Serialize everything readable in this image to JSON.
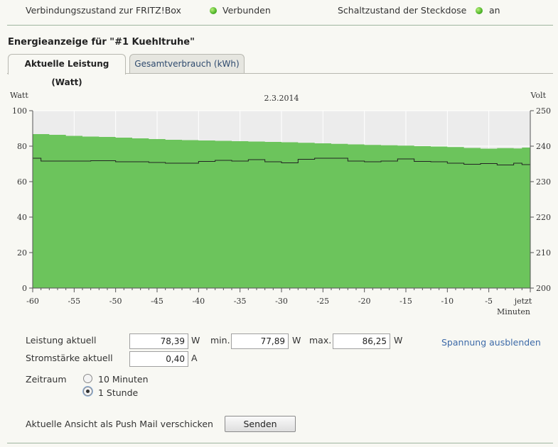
{
  "status": {
    "connection_label": "Verbindungszustand zur FRITZ!Box",
    "connection_value": "Verbunden",
    "switch_label": "Schaltzustand der Steckdose",
    "switch_value": "an",
    "led_color": "#4fb52a"
  },
  "section_title": "Energieanzeige für \"#1 Kuehltruhe\"",
  "tabs": [
    {
      "label": "Aktuelle Leistung (Watt)",
      "active": true
    },
    {
      "label": "Gesamtverbrauch (kWh)",
      "active": false
    }
  ],
  "chart_data": {
    "type": "area",
    "title": "2.3.2014",
    "ylabel_left": "Watt",
    "ylabel_right": "Volt",
    "xlabel": "Minuten",
    "ylim_left": [
      0,
      100
    ],
    "ylim_right": [
      200,
      250
    ],
    "yticks_left": [
      "0",
      "20",
      "40",
      "60",
      "80",
      "100"
    ],
    "yticks_right": [
      "200",
      "210",
      "220",
      "230",
      "240",
      "250"
    ],
    "xlim": [
      -60,
      0
    ],
    "xticks": [
      {
        "v": -60,
        "label": "-60"
      },
      {
        "v": -55,
        "label": "-55"
      },
      {
        "v": -50,
        "label": "-50"
      },
      {
        "v": -45,
        "label": "-45"
      },
      {
        "v": -40,
        "label": "-40"
      },
      {
        "v": -35,
        "label": "-35"
      },
      {
        "v": -30,
        "label": "-30"
      },
      {
        "v": -25,
        "label": "-25"
      },
      {
        "v": -20,
        "label": "-20"
      },
      {
        "v": -15,
        "label": "-15"
      },
      {
        "v": -10,
        "label": "-10"
      },
      {
        "v": -5,
        "label": "-5"
      },
      {
        "v": 0,
        "label": "jetzt"
      }
    ],
    "grid": true,
    "fill_color": "#6cc45c",
    "voltage_color": "#222222",
    "power_watt": {
      "x": [
        -60,
        -58,
        -56,
        -54,
        -52,
        -50,
        -48,
        -46,
        -44,
        -42,
        -40,
        -38,
        -36,
        -34,
        -32,
        -30,
        -28,
        -26,
        -24,
        -22,
        -20,
        -18,
        -16,
        -14,
        -12,
        -10,
        -8,
        -6,
        -4,
        -2,
        -1,
        0
      ],
      "y": [
        86.8,
        86.4,
        85.8,
        85.4,
        85.2,
        84.8,
        84.4,
        84.0,
        83.6,
        83.4,
        83.2,
        83.0,
        82.8,
        82.6,
        82.4,
        82.2,
        81.9,
        81.6,
        81.3,
        81.0,
        80.7,
        80.5,
        80.3,
        80.0,
        79.8,
        79.5,
        79.0,
        78.6,
        78.9,
        78.7,
        79.2,
        79.3
      ]
    },
    "voltage_volt": {
      "x": [
        -60,
        -59,
        -57,
        -55,
        -53,
        -50,
        -48,
        -46,
        -44,
        -42,
        -40,
        -38,
        -36,
        -34,
        -32,
        -30,
        -28,
        -26,
        -24,
        -22,
        -20,
        -18,
        -16,
        -14,
        -12,
        -10,
        -8,
        -6,
        -4,
        -2,
        -1,
        0
      ],
      "y": [
        236.6,
        235.8,
        235.8,
        235.8,
        235.9,
        235.6,
        235.6,
        235.4,
        235.2,
        235.2,
        235.7,
        236.0,
        235.8,
        236.2,
        235.6,
        235.3,
        236.3,
        236.6,
        236.6,
        235.8,
        235.6,
        235.8,
        236.4,
        235.7,
        235.6,
        235.2,
        234.9,
        235.1,
        234.7,
        235.2,
        234.8,
        234.9
      ]
    }
  },
  "readings": {
    "power_label": "Leistung aktuell",
    "power_value": "78,39",
    "power_unit": "W",
    "min_label": "min.",
    "min_value": "77,89",
    "min_unit": "W",
    "max_label": "max.",
    "max_value": "86,25",
    "max_unit": "W",
    "current_label": "Stromstärke aktuell",
    "current_value": "0,40",
    "current_unit": "A",
    "toggle_voltage_link": "Spannung ausblenden"
  },
  "period": {
    "label": "Zeitraum",
    "options": [
      {
        "label": "10 Minuten",
        "selected": false
      },
      {
        "label": "1 Stunde",
        "selected": true
      }
    ]
  },
  "push": {
    "label": "Aktuelle Ansicht als Push Mail verschicken",
    "button": "Senden"
  }
}
